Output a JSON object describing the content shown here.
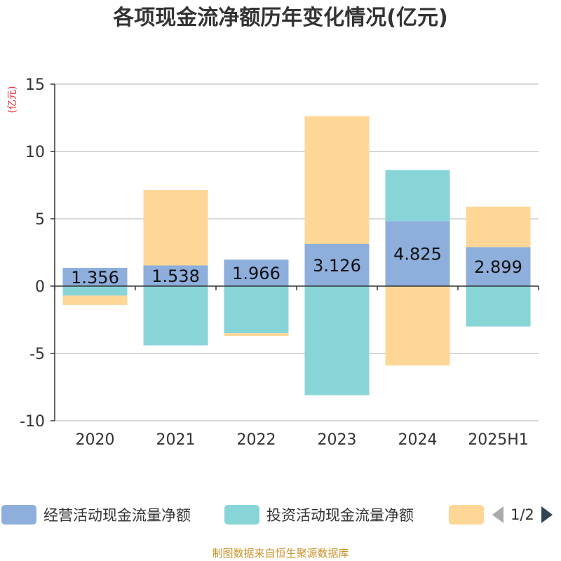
{
  "title": "各项现金流净额历年变化情况(亿元)",
  "unit_label": "(亿元)",
  "source_text": "制图数据来自恒生聚源数据库",
  "pager": {
    "text": "1/2",
    "prev_icon": "triangle-left-icon",
    "next_icon": "triangle-right-icon"
  },
  "legend": [
    {
      "label": "经营活动现金流量净额",
      "color": "#8eaedc"
    },
    {
      "label": "投资活动现金流量净额",
      "color": "#88d5d8"
    },
    {
      "label": "",
      "color": "#fed797"
    }
  ],
  "chart_data": {
    "type": "bar",
    "stacked": true,
    "categories": [
      "2020",
      "2021",
      "2022",
      "2023",
      "2024",
      "2025H1"
    ],
    "ylim": [
      -10,
      15
    ],
    "yticks": [
      -10,
      -5,
      0,
      5,
      10,
      15
    ],
    "grid": true,
    "legend_position": "bottom",
    "series": [
      {
        "name": "经营活动现金流量净额",
        "color": "#8eaedc",
        "values": [
          1.356,
          1.538,
          1.966,
          3.126,
          4.825,
          2.899
        ],
        "data_labels": [
          "1.356",
          "1.538",
          "1.966",
          "3.126",
          "4.825",
          "2.899"
        ]
      },
      {
        "name": "投资活动现金流量净额",
        "color": "#88d5d8",
        "values": [
          -0.7,
          -4.4,
          -3.5,
          -8.1,
          3.8,
          -3.0
        ]
      },
      {
        "color": "#fed797",
        "values": [
          -0.7,
          5.6,
          -0.2,
          9.5,
          -5.9,
          3.0
        ]
      }
    ]
  }
}
